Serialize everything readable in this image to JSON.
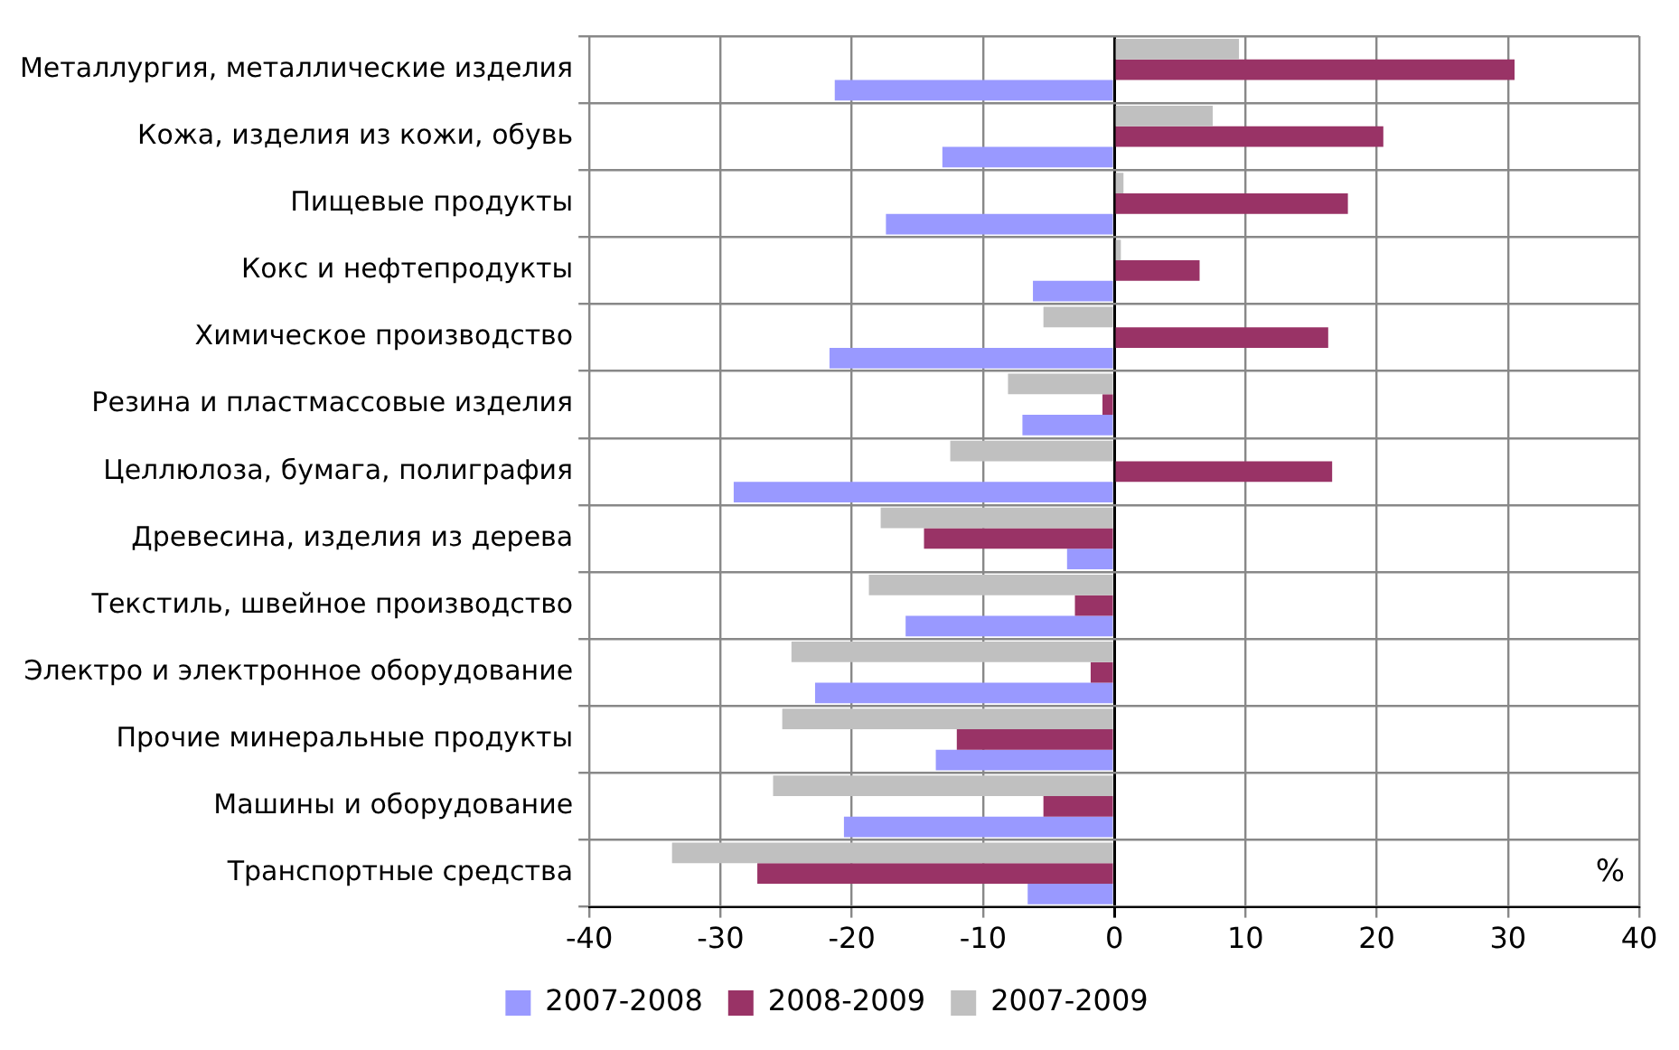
{
  "chart_data": {
    "type": "bar",
    "orientation": "horizontal",
    "categories": [
      "Металлургия, металлические изделия",
      "Кожа, изделия из кожи, обувь",
      "Пищевые продукты",
      "Кокс и нефтепродукты",
      "Химическое производство",
      "Резина и пластмассовые изделия",
      "Целлюлоза, бумага, полиграфия",
      "Древесина, изделия из дерева",
      "Текстиль, швейное производство",
      "Электро и электронное оборудование",
      "Прочие минеральные продукты",
      "Машины и оборудование",
      "Транспортные средства"
    ],
    "series": [
      {
        "name": "2007-2008",
        "color": "#9999ff",
        "values": [
          -21.3,
          -13.1,
          -17.4,
          -6.2,
          -21.7,
          -7.0,
          -29.0,
          -3.6,
          -15.9,
          -22.8,
          -13.6,
          -20.6,
          -6.6
        ]
      },
      {
        "name": "2008-2009",
        "color": "#993366",
        "values": [
          30.5,
          20.5,
          17.8,
          6.5,
          16.3,
          -0.9,
          16.6,
          -14.5,
          -3.0,
          -1.8,
          -12.0,
          -5.4,
          -27.2
        ]
      },
      {
        "name": "2007-2009",
        "color": "#c0c0c0",
        "values": [
          9.5,
          7.5,
          0.7,
          0.5,
          -5.4,
          -8.1,
          -12.5,
          -17.8,
          -18.7,
          -24.6,
          -25.3,
          -26.0,
          -33.7
        ]
      }
    ],
    "xlim": [
      -40,
      40
    ],
    "xticks": [
      -40,
      -30,
      -20,
      -10,
      0,
      10,
      20,
      30,
      40
    ],
    "annotations": [
      "%"
    ],
    "grid": true,
    "legend": "bottom"
  }
}
